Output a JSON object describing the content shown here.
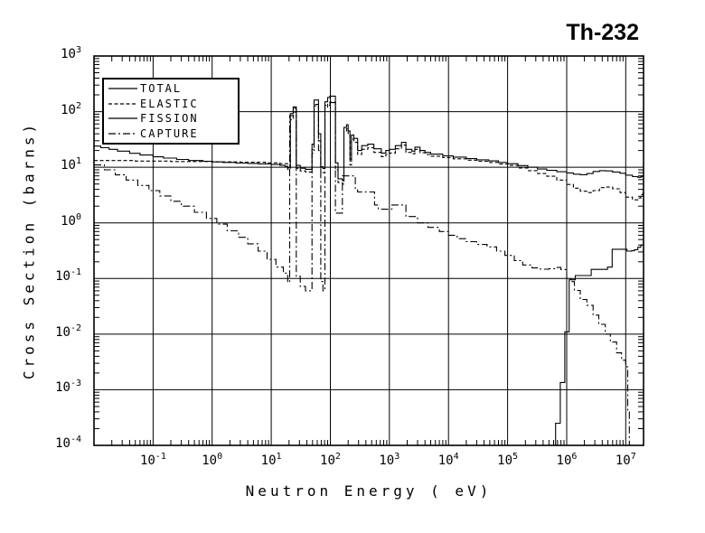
{
  "title": "Th-232",
  "axes": {
    "x": {
      "label": "Neutron Energy ( eV)",
      "scale": "log",
      "min": 0.01,
      "max": 20000000,
      "tick_exponents": [
        -1,
        0,
        1,
        2,
        3,
        4,
        5,
        6,
        7
      ],
      "tick_base": "10"
    },
    "y": {
      "label": "Cross Section (barns)",
      "scale": "log",
      "min": 0.0001,
      "max": 1000,
      "tick_exponents": [
        3,
        2,
        1,
        0,
        -1,
        -2,
        -3,
        -4
      ],
      "tick_base": "10"
    }
  },
  "legend": {
    "items": [
      {
        "label": "TOTAL",
        "dash": "solid"
      },
      {
        "label": "ELASTIC",
        "dash": "dashed"
      },
      {
        "label": "FISSION",
        "dash": "solid"
      },
      {
        "label": "CAPTURE",
        "dash": "dashdot"
      }
    ]
  },
  "chart_data": {
    "type": "line",
    "title": "Th-232",
    "xlabel": "Neutron Energy ( eV)",
    "ylabel": "Cross Section (barns)",
    "xscale": "log",
    "yscale": "log",
    "xlim": [
      0.01,
      20000000
    ],
    "ylim": [
      0.0001,
      1000
    ],
    "grid": "major-both",
    "legend_position": "upper-left",
    "series": [
      {
        "name": "TOTAL",
        "dash": "solid",
        "points": [
          [
            0.01,
            24
          ],
          [
            0.013,
            22.5
          ],
          [
            0.018,
            21
          ],
          [
            0.025,
            19.5
          ],
          [
            0.04,
            17.8
          ],
          [
            0.06,
            16.6
          ],
          [
            0.1,
            15.4
          ],
          [
            0.15,
            14.6
          ],
          [
            0.25,
            13.8
          ],
          [
            0.4,
            13.2
          ],
          [
            0.7,
            12.8
          ],
          [
            1.0,
            12.5
          ],
          [
            1.5,
            12.2
          ],
          [
            2.5,
            11.9
          ],
          [
            4,
            11.7
          ],
          [
            6,
            11.5
          ],
          [
            10,
            11.2
          ],
          [
            14,
            10.8
          ],
          [
            17,
            10.4
          ],
          [
            19,
            9.8
          ],
          [
            21,
            92
          ],
          [
            23.5,
            122
          ],
          [
            26.5,
            10.8
          ],
          [
            31,
            9.6
          ],
          [
            38,
            9.2
          ],
          [
            49,
            26
          ],
          [
            53,
            162
          ],
          [
            63,
            40
          ],
          [
            69,
            10.2
          ],
          [
            75,
            9.5
          ],
          [
            81,
            150
          ],
          [
            90,
            180
          ],
          [
            98,
            190
          ],
          [
            122,
            12
          ],
          [
            135,
            6.2
          ],
          [
            160,
            5.8
          ],
          [
            170,
            52
          ],
          [
            188,
            58
          ],
          [
            200,
            45
          ],
          [
            215,
            14
          ],
          [
            228,
            38
          ],
          [
            250,
            33
          ],
          [
            290,
            20
          ],
          [
            340,
            24.5
          ],
          [
            430,
            26
          ],
          [
            545,
            21.5
          ],
          [
            730,
            18
          ],
          [
            870,
            20
          ],
          [
            1000,
            21
          ],
          [
            1260,
            24.5
          ],
          [
            1600,
            28
          ],
          [
            1900,
            21
          ],
          [
            2400,
            19.5
          ],
          [
            2700,
            23
          ],
          [
            3300,
            20
          ],
          [
            4000,
            18.5
          ],
          [
            5000,
            17.2
          ],
          [
            8000,
            16
          ],
          [
            12000,
            15.2
          ],
          [
            20000,
            14.3
          ],
          [
            30000,
            13.6
          ],
          [
            48000,
            13.0
          ],
          [
            70000,
            12.2
          ],
          [
            100000,
            11.6
          ],
          [
            150000,
            10.7
          ],
          [
            220000,
            10.0
          ],
          [
            320000,
            9.3
          ],
          [
            460000,
            8.8
          ],
          [
            680000,
            8.3
          ],
          [
            1000000,
            7.9
          ],
          [
            1300000,
            7.5
          ],
          [
            1700000,
            7.35
          ],
          [
            2200000,
            7.7
          ],
          [
            2800000,
            8.4
          ],
          [
            3600000,
            8.7
          ],
          [
            4600000,
            8.6
          ],
          [
            6000000,
            8.2
          ],
          [
            8000000,
            7.8
          ],
          [
            10000000,
            7.2
          ],
          [
            13000000,
            6.8
          ],
          [
            16000000,
            6.6
          ],
          [
            18000000,
            6.75
          ],
          [
            19000000,
            7.0
          ],
          [
            20000000,
            7.0
          ]
        ]
      },
      {
        "name": "ELASTIC",
        "dash": "dashed",
        "points": [
          [
            0.01,
            13.2
          ],
          [
            0.05,
            12.9
          ],
          [
            0.2,
            12.7
          ],
          [
            1,
            12.5
          ],
          [
            3,
            12.3
          ],
          [
            8,
            12.0
          ],
          [
            14,
            11.6
          ],
          [
            19,
            9.2
          ],
          [
            21,
            72
          ],
          [
            23.5,
            98
          ],
          [
            26.5,
            9.6
          ],
          [
            31,
            8.6
          ],
          [
            38,
            8.2
          ],
          [
            49,
            21
          ],
          [
            53,
            128
          ],
          [
            63,
            30
          ],
          [
            69,
            8.4
          ],
          [
            75,
            8.0
          ],
          [
            81,
            120
          ],
          [
            90,
            140
          ],
          [
            98,
            148
          ],
          [
            122,
            9
          ],
          [
            135,
            5.3
          ],
          [
            160,
            5.0
          ],
          [
            170,
            44
          ],
          [
            188,
            49
          ],
          [
            200,
            38
          ],
          [
            215,
            11
          ],
          [
            228,
            32
          ],
          [
            250,
            28
          ],
          [
            290,
            17
          ],
          [
            340,
            21
          ],
          [
            430,
            22.5
          ],
          [
            545,
            18.5
          ],
          [
            730,
            15.5
          ],
          [
            870,
            17
          ],
          [
            1000,
            18
          ],
          [
            1260,
            21.5
          ],
          [
            1600,
            25
          ],
          [
            1900,
            18.5
          ],
          [
            2400,
            17.5
          ],
          [
            2700,
            21
          ],
          [
            3300,
            18.3
          ],
          [
            4000,
            17
          ],
          [
            5000,
            15.8
          ],
          [
            8000,
            14.9
          ],
          [
            12000,
            14.2
          ],
          [
            20000,
            13.4
          ],
          [
            30000,
            12.8
          ],
          [
            48000,
            12.2
          ],
          [
            70000,
            11.4
          ],
          [
            100000,
            10.8
          ],
          [
            150000,
            9.7
          ],
          [
            220000,
            8.7
          ],
          [
            320000,
            7.7
          ],
          [
            460000,
            6.9
          ],
          [
            680000,
            5.9
          ],
          [
            1000000,
            4.9
          ],
          [
            1300000,
            4.2
          ],
          [
            1700000,
            3.7
          ],
          [
            2200000,
            3.5
          ],
          [
            2800000,
            3.8
          ],
          [
            3600000,
            4.3
          ],
          [
            4600000,
            4.4
          ],
          [
            6000000,
            4.1
          ],
          [
            8000000,
            3.5
          ],
          [
            10000000,
            2.9
          ],
          [
            13000000,
            2.6
          ],
          [
            16000000,
            2.8
          ],
          [
            18000000,
            3.2
          ],
          [
            19500000,
            4.0
          ],
          [
            20000000,
            4.3
          ]
        ]
      },
      {
        "name": "FISSION",
        "dash": "solid",
        "points": [
          [
            630000,
            0.0001
          ],
          [
            650000,
            0.00025
          ],
          [
            780000,
            0.00135
          ],
          [
            930000,
            0.011
          ],
          [
            1100000,
            0.095
          ],
          [
            1400000,
            0.113
          ],
          [
            2600000,
            0.146
          ],
          [
            4900000,
            0.16
          ],
          [
            5900000,
            0.336
          ],
          [
            10500000,
            0.31
          ],
          [
            12500000,
            0.315
          ],
          [
            14000000,
            0.33
          ],
          [
            16000000,
            0.365
          ],
          [
            18000000,
            0.4
          ],
          [
            20000000,
            0.43
          ]
        ]
      },
      {
        "name": "CAPTURE",
        "dash": "dashdot",
        "points": [
          [
            0.01,
            11
          ],
          [
            0.015,
            9.0
          ],
          [
            0.023,
            7.3
          ],
          [
            0.035,
            5.9
          ],
          [
            0.055,
            4.7
          ],
          [
            0.085,
            3.8
          ],
          [
            0.13,
            3.05
          ],
          [
            0.2,
            2.45
          ],
          [
            0.3,
            2.0
          ],
          [
            0.5,
            1.55
          ],
          [
            0.8,
            1.2
          ],
          [
            1.2,
            0.95
          ],
          [
            1.8,
            0.72
          ],
          [
            2.8,
            0.55
          ],
          [
            4,
            0.42
          ],
          [
            6,
            0.31
          ],
          [
            8.5,
            0.22
          ],
          [
            12,
            0.16
          ],
          [
            16,
            0.125
          ],
          [
            19,
            0.085
          ],
          [
            20.5,
            85
          ],
          [
            23.5,
            115
          ],
          [
            26.5,
            0.11
          ],
          [
            31,
            0.072
          ],
          [
            38,
            0.06
          ],
          [
            49,
            18
          ],
          [
            53,
            135
          ],
          [
            63,
            20
          ],
          [
            69,
            0.088
          ],
          [
            75,
            0.06
          ],
          [
            81,
            130
          ],
          [
            98,
            145
          ],
          [
            122,
            1.5
          ],
          [
            160,
            7.0
          ],
          [
            265,
            3.9
          ],
          [
            290,
            3.6
          ],
          [
            560,
            2.1
          ],
          [
            650,
            1.76
          ],
          [
            1100,
            2.1
          ],
          [
            1900,
            1.3
          ],
          [
            3000,
            1.0
          ],
          [
            4500,
            0.83
          ],
          [
            7000,
            0.7
          ],
          [
            10000,
            0.6
          ],
          [
            14000,
            0.52
          ],
          [
            20000,
            0.46
          ],
          [
            30000,
            0.41
          ],
          [
            45000,
            0.37
          ],
          [
            65000,
            0.31
          ],
          [
            90000,
            0.26
          ],
          [
            130000,
            0.21
          ],
          [
            180000,
            0.175
          ],
          [
            260000,
            0.155
          ],
          [
            360000,
            0.147
          ],
          [
            500000,
            0.15
          ],
          [
            650000,
            0.158
          ],
          [
            800000,
            0.145
          ],
          [
            1000000,
            0.1
          ],
          [
            1200000,
            0.088
          ],
          [
            1350000,
            0.061
          ],
          [
            1700000,
            0.042
          ],
          [
            2200000,
            0.033
          ],
          [
            2800000,
            0.022
          ],
          [
            3500000,
            0.015
          ],
          [
            4500000,
            0.01
          ],
          [
            5500000,
            0.0072
          ],
          [
            7000000,
            0.0046
          ],
          [
            8500000,
            0.0034
          ],
          [
            10000000,
            0.0026
          ],
          [
            10800000,
            0.0004
          ],
          [
            11500000,
            0.0001
          ]
        ]
      }
    ]
  }
}
